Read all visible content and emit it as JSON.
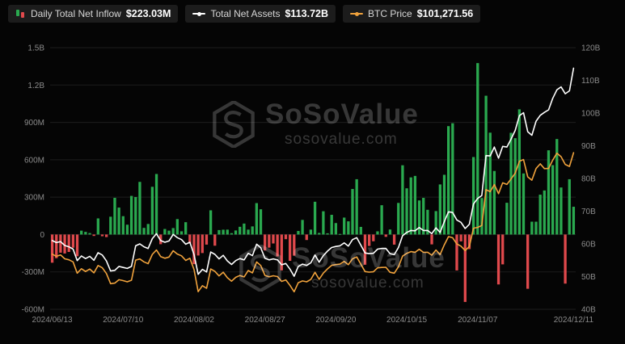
{
  "legend": {
    "items": [
      {
        "label": "Daily Total Net Inflow",
        "value": "$223.03M",
        "color": "#2aa94f",
        "color2": "#e0494c"
      },
      {
        "label": "Total Net Assets",
        "value": "$113.72B",
        "color": "#ffffff"
      },
      {
        "label": "BTC Price",
        "value": "$101,271.56",
        "color": "#f0a23c"
      }
    ]
  },
  "watermark": {
    "name": "SoSoValue",
    "site": "sosovalue.com"
  },
  "axes": {
    "y_left_ticks": [
      "1.5B",
      "1.2B",
      "900M",
      "600M",
      "300M",
      "0",
      "-300M",
      "-600M"
    ],
    "y_left_values": [
      1500,
      1200,
      900,
      600,
      300,
      0,
      -300,
      -600
    ],
    "y_right_ticks": [
      "120B",
      "110B",
      "100B",
      "90B",
      "80B",
      "70B",
      "60B",
      "50B",
      "40B"
    ],
    "y_right_values": [
      120,
      110,
      100,
      90,
      80,
      70,
      60,
      50,
      40
    ],
    "x_ticks": [
      "2024/06/13",
      "2024/07/10",
      "2024/08/02",
      "2024/08/27",
      "2024/09/20",
      "2024/10/15",
      "2024/11/07",
      "2024/12/11"
    ]
  },
  "colors": {
    "background": "#050505",
    "grid": "#1d1d1d",
    "bar_positive": "#2aa94f",
    "bar_negative": "#e0494c",
    "net_assets_line": "#ffffff",
    "btc_line": "#f0a23c",
    "axis_text": "#8b8b8b"
  },
  "chart_data": {
    "type": "bar",
    "subtype": "bar + two overlay lines",
    "legend_position": "top-left",
    "grid": "horizontal",
    "axis_ranges": {
      "left_m": [
        -600,
        1500
      ],
      "right_b": [
        40,
        120
      ],
      "btc_usd": [
        48000,
        137000
      ]
    },
    "x": [
      "2024/06/13",
      "2024/06/14",
      "2024/06/17",
      "2024/06/18",
      "2024/06/20",
      "2024/06/21",
      "2024/06/24",
      "2024/06/25",
      "2024/06/26",
      "2024/06/27",
      "2024/06/28",
      "2024/07/01",
      "2024/07/02",
      "2024/07/03",
      "2024/07/05",
      "2024/07/08",
      "2024/07/09",
      "2024/07/10",
      "2024/07/11",
      "2024/07/12",
      "2024/07/15",
      "2024/07/16",
      "2024/07/17",
      "2024/07/18",
      "2024/07/19",
      "2024/07/22",
      "2024/07/23",
      "2024/07/24",
      "2024/07/25",
      "2024/07/26",
      "2024/07/29",
      "2024/07/30",
      "2024/07/31",
      "2024/08/01",
      "2024/08/02",
      "2024/08/05",
      "2024/08/06",
      "2024/08/07",
      "2024/08/08",
      "2024/08/09",
      "2024/08/12",
      "2024/08/13",
      "2024/08/14",
      "2024/08/15",
      "2024/08/16",
      "2024/08/19",
      "2024/08/20",
      "2024/08/21",
      "2024/08/22",
      "2024/08/23",
      "2024/08/26",
      "2024/08/27",
      "2024/08/28",
      "2024/08/29",
      "2024/08/30",
      "2024/09/03",
      "2024/09/04",
      "2024/09/05",
      "2024/09/06",
      "2024/09/09",
      "2024/09/10",
      "2024/09/11",
      "2024/09/12",
      "2024/09/13",
      "2024/09/16",
      "2024/09/17",
      "2024/09/18",
      "2024/09/19",
      "2024/09/20",
      "2024/09/23",
      "2024/09/24",
      "2024/09/25",
      "2024/09/26",
      "2024/09/27",
      "2024/09/30",
      "2024/10/01",
      "2024/10/02",
      "2024/10/03",
      "2024/10/04",
      "2024/10/07",
      "2024/10/08",
      "2024/10/09",
      "2024/10/10",
      "2024/10/11",
      "2024/10/14",
      "2024/10/15",
      "2024/10/16",
      "2024/10/17",
      "2024/10/18",
      "2024/10/21",
      "2024/10/22",
      "2024/10/23",
      "2024/10/24",
      "2024/10/25",
      "2024/10/28",
      "2024/10/29",
      "2024/10/30",
      "2024/10/31",
      "2024/11/01",
      "2024/11/04",
      "2024/11/05",
      "2024/11/06",
      "2024/11/07",
      "2024/11/08",
      "2024/11/11",
      "2024/11/12",
      "2024/11/13",
      "2024/11/14",
      "2024/11/15",
      "2024/11/18",
      "2024/11/19",
      "2024/11/20",
      "2024/11/21",
      "2024/11/22",
      "2024/11/25",
      "2024/11/26",
      "2024/11/27",
      "2024/11/29",
      "2024/12/02",
      "2024/12/03",
      "2024/12/04",
      "2024/12/05",
      "2024/12/06",
      "2024/12/09",
      "2024/12/10",
      "2024/12/11"
    ],
    "series": [
      {
        "name": "Daily Total Net Inflow",
        "type": "bar",
        "axis": "left",
        "unit": "$M",
        "values": [
          -226.2,
          -189.9,
          -145.9,
          -152.4,
          -139.9,
          -105.9,
          -174.5,
          31.0,
          21.5,
          11.8,
          -11.4,
          129.5,
          -13.7,
          -20.5,
          143.1,
          294.8,
          216.4,
          147.4,
          79.0,
          310.1,
          301.0,
          422.5,
          53.4,
          84.8,
          383.1,
          485.9,
          -77.8,
          44.5,
          31.1,
          51.8,
          124.1,
          25.9,
          99.0,
          -71.3,
          -237.5,
          -168.4,
          -148.6,
          -81.0,
          194.3,
          -89.7,
          35.9,
          38.9,
          39.4,
          11.1,
          32.6,
          62.1,
          88.0,
          39.5,
          65.2,
          252.1,
          202.6,
          -127.8,
          -105.2,
          -71.8,
          -175.6,
          -287.8,
          -37.3,
          -211.1,
          -169.9,
          28.6,
          117.4,
          -44.0,
          39.4,
          263.1,
          12.8,
          186.8,
          9.9,
          158.3,
          92.0,
          4.5,
          136.0,
          106.0,
          365.7,
          444.0,
          61.3,
          -242.6,
          -91.8,
          -54.1,
          25.6,
          235.2,
          -18.6,
          40.3,
          -81.1,
          253.6,
          555.9,
          371.0,
          458.5,
          470.5,
          273.7,
          294.3,
          198.5,
          -79.1,
          188.1,
          402.1,
          479.4,
          870.1,
          893.3,
          -288.4,
          -54.9,
          -541.1,
          -116.8,
          621.9,
          1376.0,
          293.3,
          1114.1,
          817.5,
          510.1,
          -400.7,
          -239.4,
          254.8,
          816.4,
          773.4,
          1005.0,
          490.3,
          -435.3,
          103.1,
          103.0,
          320.0,
          353.7,
          676.0,
          556.8,
          766.7,
          377.6,
          -394.1,
          443.9,
          223.03
        ]
      },
      {
        "name": "Total Net Assets",
        "type": "line",
        "axis": "right",
        "unit": "$B",
        "values": [
          61.0,
          60.4,
          60.7,
          59.5,
          59.1,
          58.4,
          54.9,
          56.3,
          55.5,
          56.2,
          55.0,
          57.3,
          56.6,
          54.8,
          51.7,
          51.9,
          53.1,
          52.8,
          52.5,
          53.1,
          59.4,
          60.0,
          59.1,
          58.6,
          61.6,
          63.1,
          61.0,
          60.5,
          60.9,
          62.9,
          61.9,
          61.3,
          59.9,
          60.5,
          56.7,
          50.7,
          52.2,
          51.4,
          57.5,
          56.8,
          55.4,
          56.5,
          54.8,
          53.7,
          54.9,
          55.5,
          55.1,
          57.1,
          56.4,
          59.9,
          58.8,
          55.6,
          55.1,
          55.4,
          55.1,
          53.6,
          54.0,
          52.3,
          50.1,
          53.1,
          53.8,
          53.4,
          54.2,
          56.6,
          54.4,
          56.4,
          57.8,
          58.9,
          59.2,
          59.4,
          60.3,
          59.3,
          61.3,
          61.9,
          59.6,
          57.2,
          57.0,
          57.1,
          58.4,
          58.6,
          58.6,
          57.0,
          56.7,
          58.9,
          62.5,
          63.5,
          64.1,
          64.0,
          65.0,
          64.1,
          64.1,
          63.1,
          64.9,
          63.5,
          66.8,
          69.8,
          69.6,
          67.3,
          66.6,
          64.7,
          66.0,
          72.2,
          73.9,
          74.8,
          87.0,
          86.9,
          89.6,
          86.2,
          89.8,
          89.6,
          92.0,
          94.7,
          99.2,
          100.1,
          94.3,
          93.2,
          97.5,
          99.3,
          100.2,
          101.0,
          104.5,
          107.1,
          108.0,
          105.9,
          106.8,
          113.72
        ]
      },
      {
        "name": "BTC Price",
        "type": "line",
        "axis": "btc_usd",
        "unit": "$",
        "values": [
          66750,
          66010,
          66500,
          65170,
          64830,
          64120,
          60280,
          61800,
          60860,
          61680,
          60400,
          62900,
          62130,
          60170,
          56700,
          56900,
          58050,
          57740,
          57340,
          57900,
          64740,
          65100,
          64120,
          63510,
          66690,
          68150,
          65930,
          65370,
          65780,
          67910,
          66800,
          66190,
          64620,
          65350,
          61500,
          54000,
          56030,
          55130,
          61710,
          60880,
          59350,
          60600,
          58740,
          57560,
          58890,
          59490,
          59010,
          61180,
          60380,
          64090,
          62880,
          59500,
          59030,
          59390,
          59120,
          57490,
          58000,
          56170,
          53950,
          57040,
          57650,
          57340,
          58130,
          60580,
          58190,
          60310,
          61760,
          62940,
          63200,
          63390,
          64300,
          63150,
          65180,
          65790,
          63330,
          60840,
          60630,
          60750,
          62080,
          62220,
          62280,
          60580,
          60280,
          62450,
          66080,
          67040,
          67620,
          67400,
          68420,
          67370,
          67400,
          66410,
          68160,
          66600,
          69910,
          72720,
          72340,
          70220,
          69480,
          67970,
          69360,
          75570,
          75860,
          76500,
          88700,
          88000,
          90410,
          87330,
          91030,
          90470,
          92310,
          94290,
          98380,
          98920,
          93060,
          91920,
          95890,
          97460,
          95840,
          95900,
          98740,
          101100,
          99920,
          97280,
          96600,
          101271.56
        ]
      }
    ]
  }
}
